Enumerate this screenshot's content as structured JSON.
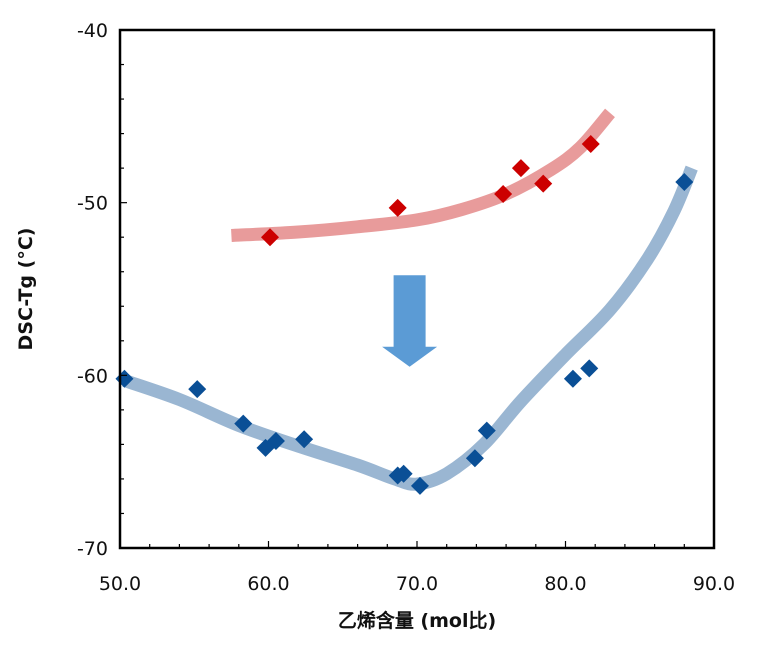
{
  "chart_data": {
    "type": "scatter",
    "title": "",
    "xlabel": "乙烯含量 (mol比)",
    "ylabel": "DSC-Tg (°C)",
    "xlim": [
      50,
      90
    ],
    "ylim": [
      -70,
      -40
    ],
    "x_ticks": [
      "50.0",
      "60.0",
      "70.0",
      "80.0",
      "90.0"
    ],
    "y_ticks": [
      "-40",
      "-50",
      "-60",
      "-70"
    ],
    "grid": false,
    "legend": "none",
    "series": [
      {
        "color": "#cc0000",
        "trend_color": "#e89b9b",
        "points": [
          {
            "x": 60.1,
            "y": -52.0
          },
          {
            "x": 68.7,
            "y": -50.3
          },
          {
            "x": 75.8,
            "y": -49.5
          },
          {
            "x": 77.0,
            "y": -48.0
          },
          {
            "x": 78.5,
            "y": -48.9
          },
          {
            "x": 81.7,
            "y": -46.6
          }
        ],
        "trend": [
          {
            "x": 57.5,
            "y": -51.9
          },
          {
            "x": 62.0,
            "y": -51.7
          },
          {
            "x": 66.0,
            "y": -51.4
          },
          {
            "x": 70.0,
            "y": -51.0
          },
          {
            "x": 73.0,
            "y": -50.4
          },
          {
            "x": 76.0,
            "y": -49.5
          },
          {
            "x": 79.0,
            "y": -48.1
          },
          {
            "x": 81.0,
            "y": -46.8
          },
          {
            "x": 83.0,
            "y": -44.8
          }
        ]
      },
      {
        "color": "#0a4f96",
        "trend_color": "#9ab6d2",
        "points": [
          {
            "x": 50.3,
            "y": -60.2
          },
          {
            "x": 55.2,
            "y": -60.8
          },
          {
            "x": 58.3,
            "y": -62.8
          },
          {
            "x": 59.8,
            "y": -64.2
          },
          {
            "x": 60.5,
            "y": -63.8
          },
          {
            "x": 62.4,
            "y": -63.7
          },
          {
            "x": 68.7,
            "y": -65.8
          },
          {
            "x": 69.1,
            "y": -65.7
          },
          {
            "x": 70.2,
            "y": -66.4
          },
          {
            "x": 73.9,
            "y": -64.8
          },
          {
            "x": 74.7,
            "y": -63.2
          },
          {
            "x": 80.5,
            "y": -60.2
          },
          {
            "x": 81.6,
            "y": -59.6
          },
          {
            "x": 88.0,
            "y": -48.8
          }
        ],
        "trend": [
          {
            "x": 50.3,
            "y": -60.3
          },
          {
            "x": 54.0,
            "y": -61.4
          },
          {
            "x": 58.0,
            "y": -62.9
          },
          {
            "x": 62.0,
            "y": -64.1
          },
          {
            "x": 66.0,
            "y": -65.2
          },
          {
            "x": 68.5,
            "y": -66.0
          },
          {
            "x": 70.0,
            "y": -66.3
          },
          {
            "x": 72.0,
            "y": -65.7
          },
          {
            "x": 74.5,
            "y": -64.0
          },
          {
            "x": 77.0,
            "y": -61.5
          },
          {
            "x": 80.0,
            "y": -58.8
          },
          {
            "x": 83.0,
            "y": -56.2
          },
          {
            "x": 85.5,
            "y": -53.3
          },
          {
            "x": 87.3,
            "y": -50.5
          },
          {
            "x": 88.5,
            "y": -48.0
          }
        ]
      }
    ],
    "annotations": [
      {
        "type": "arrow-down",
        "color": "#5b9bd5",
        "x": 69.5,
        "y_from": -54.2,
        "y_to": -59.5
      }
    ]
  }
}
